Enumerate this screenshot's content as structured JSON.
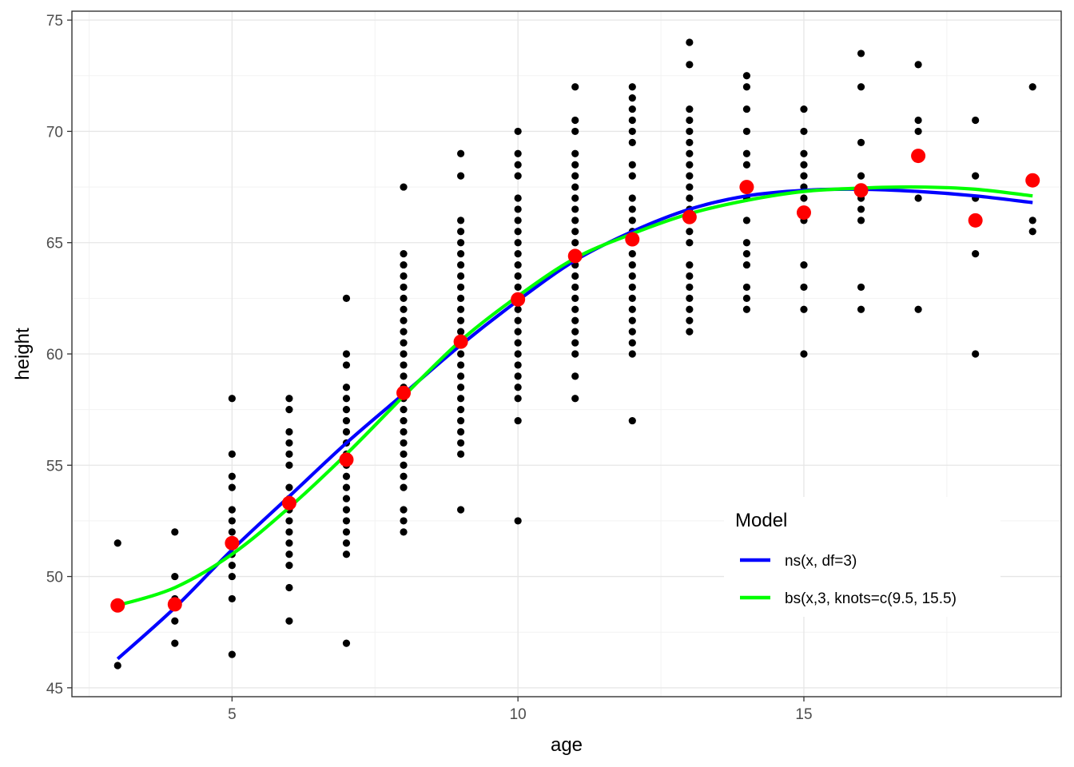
{
  "chart_data": {
    "type": "scatter",
    "xlabel": "age",
    "ylabel": "height",
    "xlim": [
      2.2,
      19.5
    ],
    "ylim": [
      44.6,
      75.4
    ],
    "x_ticks": [
      5,
      10,
      15
    ],
    "x_tick_labels": [
      "5",
      "10",
      "15"
    ],
    "y_ticks": [
      45,
      50,
      55,
      60,
      65,
      70,
      75
    ],
    "y_tick_labels": [
      "45",
      "50",
      "55",
      "60",
      "65",
      "70",
      "75"
    ],
    "grid": true,
    "legend_position": "bottom-right (inside)",
    "colors": {
      "observed": "#000000",
      "mean": "#ff0000",
      "ns": "#0000ff",
      "bs": "#00ff00"
    },
    "observed_points": [
      {
        "x": 3,
        "y": [
          46,
          48.7,
          51.5
        ]
      },
      {
        "x": 4,
        "y": [
          47,
          48,
          49,
          50,
          52
        ]
      },
      {
        "x": 5,
        "y": [
          46.5,
          49,
          50,
          50.5,
          51,
          51.5,
          52,
          52.5,
          53,
          54,
          54.5,
          55.5,
          58
        ]
      },
      {
        "x": 6,
        "y": [
          48,
          49.5,
          50.5,
          51,
          51.5,
          52,
          52.5,
          53,
          53.5,
          54,
          55,
          55.5,
          56,
          56.5,
          57.5,
          58
        ]
      },
      {
        "x": 7,
        "y": [
          47,
          51,
          51.5,
          52,
          52.5,
          53,
          53.5,
          54,
          54.5,
          55,
          55.5,
          56,
          56.5,
          57,
          57.5,
          58,
          58.5,
          59.5,
          60,
          62.5
        ]
      },
      {
        "x": 8,
        "y": [
          52,
          52.5,
          53,
          54,
          54.5,
          55,
          55.5,
          56,
          56.5,
          57,
          57.5,
          58,
          58.5,
          59,
          59.5,
          60,
          60.5,
          61,
          61.5,
          62,
          62.5,
          63,
          63.5,
          64,
          64.5,
          67.5
        ]
      },
      {
        "x": 9,
        "y": [
          53,
          55.5,
          56,
          56.5,
          57,
          57.5,
          58,
          58.5,
          59,
          59.5,
          60,
          60.5,
          61,
          61.5,
          62,
          62.5,
          63,
          63.5,
          64,
          64.5,
          65,
          65.5,
          66,
          68,
          69
        ]
      },
      {
        "x": 10,
        "y": [
          52.5,
          57,
          58,
          58.5,
          59,
          59.5,
          60,
          60.5,
          61,
          61.5,
          62,
          62.5,
          63,
          63.5,
          64,
          64.5,
          65,
          65.5,
          66,
          66.5,
          67,
          68,
          68.5,
          69,
          70
        ]
      },
      {
        "x": 11,
        "y": [
          58,
          59,
          60,
          60.5,
          61,
          61.5,
          62,
          62.5,
          63,
          63.5,
          64,
          64.5,
          65,
          65.5,
          66,
          66.5,
          67,
          67.5,
          68,
          68.5,
          69,
          70,
          70.5,
          72
        ]
      },
      {
        "x": 12,
        "y": [
          57,
          60,
          60.5,
          61,
          61.5,
          62,
          62.5,
          63,
          63.5,
          64,
          64.5,
          65,
          65.5,
          66,
          66.5,
          67,
          68,
          68.5,
          69.5,
          70,
          70.5,
          71,
          71.5,
          72
        ]
      },
      {
        "x": 13,
        "y": [
          61,
          61.5,
          62,
          62.5,
          63,
          63.5,
          64,
          65,
          65.5,
          66,
          66.5,
          67,
          67.5,
          68,
          68.5,
          69,
          69.5,
          70,
          70.5,
          71,
          73,
          74
        ]
      },
      {
        "x": 14,
        "y": [
          62,
          62.5,
          63,
          64,
          64.5,
          65,
          66,
          67,
          67.5,
          68.5,
          69,
          70,
          71,
          72,
          72.5
        ]
      },
      {
        "x": 15,
        "y": [
          60,
          62,
          63,
          64,
          66,
          66.5,
          67,
          67.5,
          68,
          68.5,
          69,
          70,
          71
        ]
      },
      {
        "x": 16,
        "y": [
          62,
          63,
          66,
          66.5,
          67,
          67.5,
          68,
          69.5,
          72,
          73.5
        ]
      },
      {
        "x": 17,
        "y": [
          62,
          67,
          70,
          70.5,
          73
        ]
      },
      {
        "x": 18,
        "y": [
          60,
          64.5,
          67,
          68,
          70.5
        ]
      },
      {
        "x": 19,
        "y": [
          65.5,
          66,
          72
        ]
      }
    ],
    "age_means": {
      "x": [
        3,
        4,
        5,
        6,
        7,
        8,
        9,
        10,
        11,
        12,
        13,
        14,
        15,
        16,
        17,
        18,
        19
      ],
      "y": [
        48.7,
        48.75,
        51.5,
        53.3,
        55.25,
        58.25,
        60.55,
        62.45,
        64.4,
        65.15,
        66.15,
        67.5,
        66.35,
        67.35,
        68.9,
        66.0,
        67.8
      ]
    },
    "series": [
      {
        "name": "ns(x, df=3)",
        "x": [
          3,
          4,
          5,
          6,
          7,
          8,
          9,
          10,
          11,
          12,
          13,
          14,
          15,
          16,
          17,
          18,
          19
        ],
        "y": [
          46.3,
          48.6,
          51.2,
          53.6,
          56.0,
          58.2,
          60.4,
          62.4,
          64.2,
          65.5,
          66.5,
          67.1,
          67.35,
          67.4,
          67.3,
          67.1,
          66.8
        ]
      },
      {
        "name": "bs(x,3, knots=c(9.5, 15.5)",
        "x": [
          3,
          4,
          5,
          6,
          7,
          8,
          9,
          10,
          11,
          12,
          13,
          14,
          15,
          16,
          17,
          18,
          19
        ],
        "y": [
          48.7,
          49.5,
          51.0,
          53.1,
          55.5,
          58.1,
          60.6,
          62.6,
          64.3,
          65.4,
          66.3,
          66.9,
          67.3,
          67.45,
          67.5,
          67.4,
          67.1
        ]
      }
    ]
  },
  "legend": {
    "title": "Model",
    "items": [
      {
        "label": "ns(x, df=3)",
        "color": "#0000ff"
      },
      {
        "label": "bs(x,3, knots=c(9.5, 15.5)",
        "color": "#00ff00"
      }
    ]
  }
}
